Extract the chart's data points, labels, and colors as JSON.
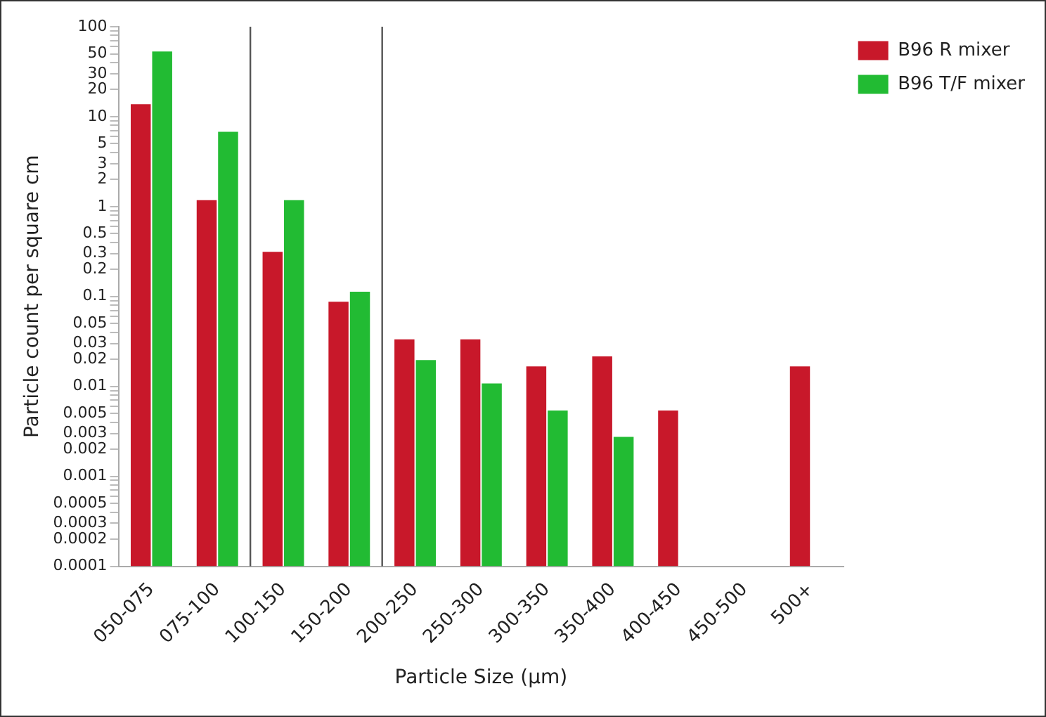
{
  "chart_data": {
    "type": "bar",
    "xlabel": "Particle Size (µm)",
    "ylabel": "Particle count per square cm",
    "categories": [
      "050-075",
      "075-100",
      "100-150",
      "150-200",
      "200-250",
      "250-300",
      "300-350",
      "350-400",
      "400-450",
      "450-500",
      "500+"
    ],
    "series": [
      {
        "name": "B96 R mixer",
        "color": "#c8182a",
        "values": [
          14,
          1.2,
          0.32,
          0.089,
          0.034,
          0.034,
          0.017,
          0.022,
          0.0055,
          null,
          0.017
        ]
      },
      {
        "name": "B96 T/F mixer",
        "color": "#22bb33",
        "values": [
          54,
          6.9,
          1.2,
          0.115,
          0.02,
          0.011,
          0.0055,
          0.0028,
          null,
          null,
          null
        ]
      }
    ],
    "log": "y",
    "ylim": [
      0.0001,
      100
    ],
    "yticks": [
      0.0001,
      0.0002,
      0.0003,
      {
        "value": 0.0004,
        "label": null
      },
      0.0005,
      {
        "value": 0.0006,
        "label": null
      },
      {
        "value": 0.0007,
        "label": null
      },
      {
        "value": 0.0008,
        "label": null
      },
      {
        "value": 0.0009,
        "label": null
      },
      0.001,
      0.002,
      0.003,
      {
        "value": 0.004,
        "label": null
      },
      0.005,
      {
        "value": 0.006,
        "label": null
      },
      {
        "value": 0.007,
        "label": null
      },
      {
        "value": 0.008,
        "label": null
      },
      {
        "value": 0.009,
        "label": null
      },
      0.01,
      0.02,
      0.03,
      {
        "value": 0.04,
        "label": null
      },
      0.05,
      {
        "value": 0.06,
        "label": null
      },
      {
        "value": 0.07,
        "label": null
      },
      {
        "value": 0.08,
        "label": null
      },
      {
        "value": 0.09,
        "label": null
      },
      0.1,
      0.2,
      0.3,
      {
        "value": 0.4,
        "label": null
      },
      0.5,
      {
        "value": 0.6,
        "label": null
      },
      {
        "value": 0.7,
        "label": null
      },
      {
        "value": 0.8,
        "label": null
      },
      {
        "value": 0.9,
        "label": null
      },
      1,
      2,
      3,
      {
        "value": 4,
        "label": null
      },
      5,
      {
        "value": 6,
        "label": null
      },
      {
        "value": 7,
        "label": null
      },
      {
        "value": 8,
        "label": null
      },
      {
        "value": 9,
        "label": null
      },
      10,
      20,
      30,
      {
        "value": 40,
        "label": null
      },
      50,
      {
        "value": 60,
        "label": null
      },
      {
        "value": 70,
        "label": null
      },
      {
        "value": 80,
        "label": null
      },
      {
        "value": 90,
        "label": null
      },
      100
    ],
    "grid": false,
    "legend": "top right"
  }
}
